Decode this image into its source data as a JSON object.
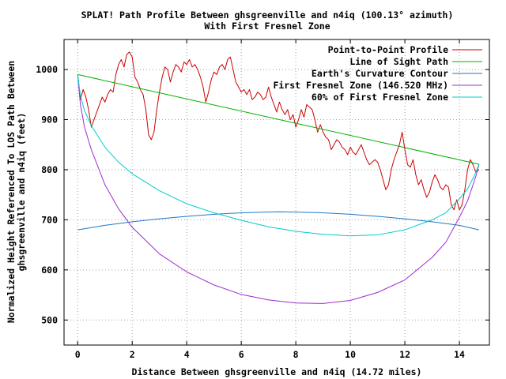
{
  "chart_data": {
    "type": "line",
    "title": "SPLAT! Path Profile Between ghsgreenville and n4iq (100.13° azimuth)",
    "subtitle": "With First Fresnel Zone",
    "xlabel": "Distance Between ghsgreenville and n4iq (14.72 miles)",
    "ylabel": [
      "Normalized Height Referenced To LOS Path Between",
      "ghsgreenville and n4iq (feet)"
    ],
    "xlim": [
      -0.5,
      15.1
    ],
    "ylim": [
      450,
      1060
    ],
    "xticks": [
      0,
      2,
      4,
      6,
      8,
      10,
      12,
      14
    ],
    "yticks": [
      500,
      600,
      700,
      800,
      900,
      1000
    ],
    "grid": true,
    "legend_position": "top-right",
    "series": [
      {
        "name": "Point-to-Point Profile",
        "color": "#cc0000",
        "x": [
          0,
          0.1,
          0.2,
          0.3,
          0.4,
          0.5,
          0.6,
          0.7,
          0.8,
          0.9,
          1.0,
          1.1,
          1.2,
          1.3,
          1.4,
          1.5,
          1.6,
          1.7,
          1.8,
          1.9,
          2.0,
          2.1,
          2.2,
          2.3,
          2.4,
          2.5,
          2.6,
          2.7,
          2.8,
          2.9,
          3.0,
          3.1,
          3.2,
          3.3,
          3.4,
          3.5,
          3.6,
          3.7,
          3.8,
          3.9,
          4.0,
          4.1,
          4.2,
          4.3,
          4.4,
          4.5,
          4.6,
          4.7,
          4.8,
          4.9,
          5.0,
          5.1,
          5.2,
          5.3,
          5.4,
          5.5,
          5.6,
          5.7,
          5.8,
          5.9,
          6.0,
          6.1,
          6.2,
          6.3,
          6.4,
          6.5,
          6.6,
          6.7,
          6.8,
          6.9,
          7.0,
          7.1,
          7.2,
          7.3,
          7.4,
          7.5,
          7.6,
          7.7,
          7.8,
          7.9,
          8.0,
          8.1,
          8.2,
          8.3,
          8.4,
          8.5,
          8.6,
          8.7,
          8.8,
          8.9,
          9.0,
          9.1,
          9.2,
          9.3,
          9.4,
          9.5,
          9.6,
          9.7,
          9.8,
          9.9,
          10.0,
          10.1,
          10.2,
          10.3,
          10.4,
          10.5,
          10.6,
          10.7,
          10.8,
          10.9,
          11.0,
          11.1,
          11.2,
          11.3,
          11.4,
          11.5,
          11.6,
          11.7,
          11.8,
          11.9,
          12.0,
          12.1,
          12.2,
          12.3,
          12.4,
          12.5,
          12.6,
          12.7,
          12.8,
          12.9,
          13.0,
          13.1,
          13.2,
          13.3,
          13.4,
          13.5,
          13.6,
          13.7,
          13.8,
          13.9,
          14.0,
          14.1,
          14.2,
          14.3,
          14.4,
          14.5,
          14.6,
          14.72
        ],
        "y": [
          990,
          940,
          960,
          945,
          920,
          885,
          900,
          915,
          930,
          945,
          935,
          950,
          960,
          955,
          990,
          1010,
          1020,
          1005,
          1030,
          1035,
          1025,
          985,
          975,
          960,
          950,
          920,
          870,
          860,
          875,
          920,
          955,
          985,
          1005,
          1000,
          975,
          995,
          1010,
          1005,
          995,
          1015,
          1010,
          1020,
          1005,
          1010,
          1000,
          985,
          965,
          935,
          955,
          980,
          995,
          990,
          1005,
          1010,
          1000,
          1020,
          1025,
          1000,
          975,
          965,
          955,
          960,
          950,
          960,
          940,
          945,
          955,
          950,
          940,
          945,
          965,
          945,
          930,
          915,
          935,
          920,
          910,
          920,
          900,
          910,
          885,
          900,
          920,
          905,
          930,
          925,
          920,
          900,
          875,
          890,
          875,
          865,
          860,
          840,
          850,
          860,
          855,
          845,
          840,
          830,
          845,
          835,
          830,
          840,
          850,
          835,
          820,
          810,
          815,
          820,
          815,
          800,
          780,
          760,
          770,
          800,
          820,
          835,
          850,
          875,
          840,
          810,
          805,
          820,
          790,
          770,
          780,
          760,
          745,
          755,
          775,
          790,
          780,
          765,
          760,
          770,
          765,
          730,
          720,
          740,
          720,
          730,
          760,
          800,
          820,
          810,
          795,
          800
        ]
      },
      {
        "name": "Line of Sight Path",
        "color": "#00b000",
        "x": [
          0,
          14.72
        ],
        "y": [
          990,
          811
        ]
      },
      {
        "name": "Earth's Curvature Contour",
        "color": "#1e78c8",
        "x": [
          0,
          1,
          2,
          3,
          4,
          5,
          6,
          7,
          7.36,
          8,
          9,
          10,
          11,
          12,
          13,
          14,
          14.72
        ],
        "y": [
          680,
          689,
          696,
          702,
          707,
          711,
          714,
          715.5,
          716,
          715.5,
          714,
          711,
          707,
          702,
          696,
          689,
          680
        ]
      },
      {
        "name": "First Fresnel Zone (146.520 MHz)",
        "color": "#9c2cd0",
        "x": [
          0,
          0.1,
          0.25,
          0.5,
          1,
          1.5,
          2,
          3,
          4,
          5,
          6,
          7,
          8,
          9,
          10,
          11,
          12,
          13,
          13.5,
          14,
          14.3,
          14.5,
          14.62,
          14.72
        ],
        "y": [
          990,
          930,
          885,
          840,
          770,
          722,
          685,
          632,
          596,
          570,
          551,
          540,
          534,
          533,
          539,
          555,
          580,
          625,
          655,
          705,
          738,
          770,
          790,
          811
        ]
      },
      {
        "name": "60% of First Fresnel Zone",
        "color": "#00cccc",
        "x": [
          0,
          0.1,
          0.25,
          0.5,
          1,
          1.5,
          2,
          3,
          4,
          5,
          6,
          7,
          8,
          9,
          10,
          11,
          12,
          13,
          13.5,
          14,
          14.3,
          14.5,
          14.62,
          14.72
        ],
        "y": [
          990,
          948,
          918,
          888,
          845,
          815,
          792,
          758,
          732,
          714,
          699,
          686,
          677,
          671,
          668,
          670,
          680,
          700,
          714,
          742,
          762,
          783,
          797,
          811
        ]
      }
    ]
  }
}
